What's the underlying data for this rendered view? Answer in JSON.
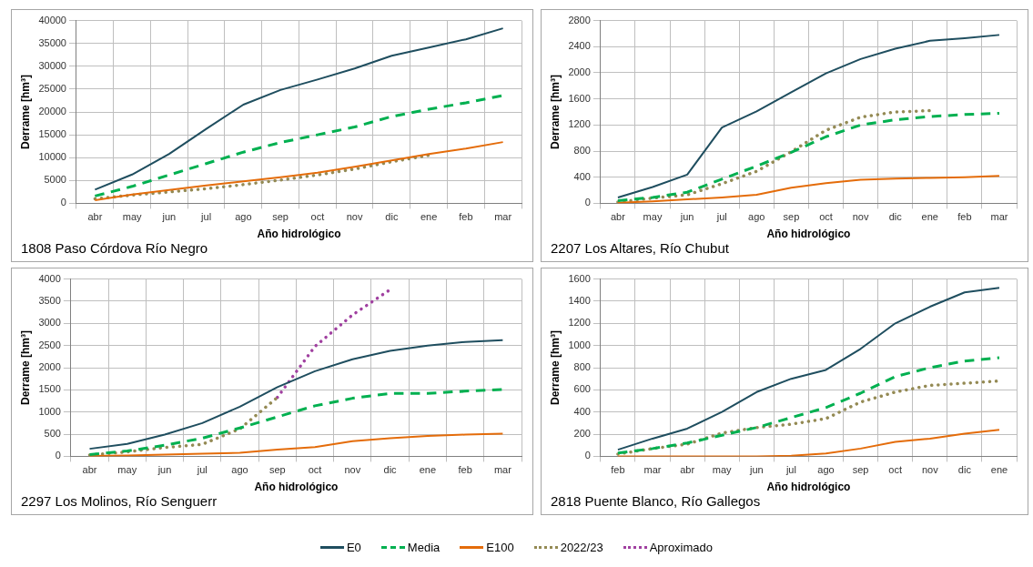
{
  "chart_data": [
    {
      "type": "line",
      "title": "1808 Paso Córdova Río Negro",
      "xlabel": "Año hidrológico",
      "ylabel": "Derrame [hm³]",
      "categories": [
        "abr",
        "may",
        "jun",
        "jul",
        "ago",
        "sep",
        "oct",
        "nov",
        "dic",
        "ene",
        "feb",
        "mar"
      ],
      "ylim": [
        0,
        40000
      ],
      "yticks": [
        0,
        5000,
        10000,
        15000,
        20000,
        25000,
        30000,
        35000,
        40000
      ],
      "grid": true,
      "legend": "bottom",
      "marker": "none",
      "series": [
        {
          "name": "E0",
          "color": "#1f4e5f",
          "line_style": "solid",
          "values": [
            3000,
            6300,
            10800,
            16300,
            21600,
            24800,
            27100,
            29500,
            32300,
            34100,
            35900,
            38300
          ]
        },
        {
          "name": "Media",
          "color": "#00b050",
          "line_style": "dashed",
          "values": [
            1600,
            3700,
            6200,
            8700,
            11200,
            13300,
            15000,
            16700,
            19000,
            20600,
            22000,
            23600
          ]
        },
        {
          "name": "E100",
          "color": "#e46c0a",
          "line_style": "solid",
          "values": [
            700,
            1900,
            2900,
            3900,
            4800,
            5700,
            6700,
            8000,
            9400,
            10800,
            12000,
            13400
          ]
        },
        {
          "name": "2022/23",
          "color": "#948a54",
          "line_style": "dotted",
          "values": [
            1000,
            1800,
            2500,
            3200,
            4100,
            5100,
            6200,
            7500,
            9100,
            10500,
            null,
            null
          ]
        }
      ]
    },
    {
      "type": "line",
      "title": "2207 Los Altares, Río Chubut",
      "xlabel": "Año hidrológico",
      "ylabel": "Derrame [hm³]",
      "categories": [
        "abr",
        "may",
        "jun",
        "jul",
        "ago",
        "sep",
        "oct",
        "nov",
        "dic",
        "ene",
        "feb",
        "mar"
      ],
      "ylim": [
        0,
        2800
      ],
      "yticks": [
        0,
        400,
        800,
        1200,
        1600,
        2000,
        2400,
        2800
      ],
      "grid": true,
      "legend": "bottom",
      "marker": "none",
      "series": [
        {
          "name": "E0",
          "color": "#1f4e5f",
          "line_style": "solid",
          "values": [
            90,
            250,
            440,
            1160,
            1410,
            1700,
            1990,
            2210,
            2370,
            2490,
            2530,
            2580
          ]
        },
        {
          "name": "Media",
          "color": "#00b050",
          "line_style": "dashed",
          "values": [
            40,
            90,
            170,
            370,
            570,
            780,
            1020,
            1200,
            1280,
            1330,
            1360,
            1380
          ]
        },
        {
          "name": "E100",
          "color": "#e46c0a",
          "line_style": "solid",
          "values": [
            10,
            30,
            60,
            90,
            130,
            240,
            310,
            360,
            380,
            390,
            400,
            420
          ]
        },
        {
          "name": "2022/23",
          "color": "#948a54",
          "line_style": "dotted",
          "values": [
            20,
            80,
            130,
            300,
            490,
            790,
            1120,
            1320,
            1400,
            1420,
            null,
            null
          ]
        }
      ]
    },
    {
      "type": "line",
      "title": "2297 Los Molinos, Río Senguerr",
      "xlabel": "Año hidrológico",
      "ylabel": "Derrame [hm³]",
      "categories": [
        "abr",
        "may",
        "jun",
        "jul",
        "ago",
        "sep",
        "oct",
        "nov",
        "dic",
        "ene",
        "feb",
        "mar"
      ],
      "ylim": [
        0,
        4000
      ],
      "yticks": [
        0,
        500,
        1000,
        1500,
        2000,
        2500,
        3000,
        3500,
        4000
      ],
      "grid": true,
      "legend": "bottom",
      "marker": "none",
      "series": [
        {
          "name": "E0",
          "color": "#1f4e5f",
          "line_style": "solid",
          "values": [
            170,
            280,
            490,
            750,
            1120,
            1560,
            1920,
            2190,
            2380,
            2500,
            2580,
            2620
          ]
        },
        {
          "name": "Media",
          "color": "#00b050",
          "line_style": "dashed",
          "values": [
            40,
            120,
            250,
            410,
            640,
            890,
            1140,
            1310,
            1420,
            1420,
            1470,
            1510
          ]
        },
        {
          "name": "E100",
          "color": "#e46c0a",
          "line_style": "solid",
          "values": [
            10,
            20,
            40,
            60,
            80,
            150,
            210,
            340,
            410,
            460,
            490,
            510
          ]
        },
        {
          "name": "2022/23",
          "color": "#948a54",
          "line_style": "dotted",
          "values": [
            30,
            100,
            200,
            270,
            620,
            1330,
            null,
            null,
            null,
            null,
            null,
            null
          ]
        },
        {
          "name": "Aproximado",
          "color": "#a040a0",
          "line_style": "dotted",
          "values": [
            null,
            null,
            null,
            null,
            null,
            1330,
            2480,
            3190,
            3760,
            null,
            null,
            null
          ]
        }
      ]
    },
    {
      "type": "line",
      "title": "2818 Puente Blanco, Río Gallegos",
      "xlabel": "Año hidrológico",
      "ylabel": "Derrame [hm³]",
      "categories": [
        "feb",
        "mar",
        "abr",
        "may",
        "jun",
        "jul",
        "ago",
        "sep",
        "oct",
        "nov",
        "dic",
        "ene"
      ],
      "ylim": [
        0,
        1600
      ],
      "yticks": [
        0,
        200,
        400,
        600,
        800,
        1000,
        1200,
        1400,
        1600
      ],
      "grid": true,
      "legend": "bottom",
      "marker": "none",
      "series": [
        {
          "name": "E0",
          "color": "#1f4e5f",
          "line_style": "solid",
          "values": [
            60,
            160,
            250,
            400,
            580,
            700,
            780,
            970,
            1200,
            1350,
            1480,
            1520
          ]
        },
        {
          "name": "Media",
          "color": "#00b050",
          "line_style": "dashed",
          "values": [
            30,
            70,
            120,
            190,
            260,
            350,
            440,
            570,
            720,
            800,
            860,
            890
          ]
        },
        {
          "name": "E100",
          "color": "#e46c0a",
          "line_style": "solid",
          "values": [
            0,
            0,
            0,
            0,
            0,
            5,
            25,
            70,
            130,
            160,
            205,
            240
          ]
        },
        {
          "name": "2022/23",
          "color": "#948a54",
          "line_style": "dotted",
          "values": [
            20,
            70,
            110,
            210,
            260,
            290,
            340,
            490,
            580,
            640,
            660,
            680
          ]
        }
      ]
    }
  ]
}
